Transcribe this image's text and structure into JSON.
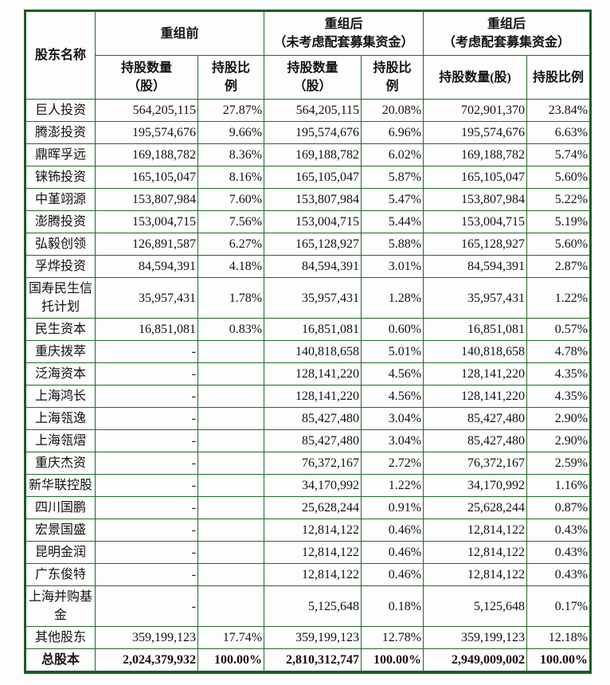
{
  "table": {
    "border_color": "#236b28",
    "header": {
      "shareholder": "股东名称",
      "group_pre_title": "重组前",
      "group_post1_title_line1": "重组后",
      "group_post1_title_line2": "（未考虑配套募集资金）",
      "group_post2_title_line1": "重组后",
      "group_post2_title_line2": "（考虑配套募集资金）",
      "qty_label_line1": "持股数量",
      "qty_label_line2": "（股）",
      "pct_label_line1": "持股比",
      "pct_label_line2": "例",
      "qty_label_inline": "持股数量(股)",
      "pct_label_inline": "持股比例"
    },
    "rows": [
      {
        "name": "巨人投资",
        "pre_qty": "564,205,115",
        "pre_pct": "27.87%",
        "post1_qty": "564,205,115",
        "post1_pct": "20.08%",
        "post2_qty": "702,901,370",
        "post2_pct": "23.84%"
      },
      {
        "name": "腾澎投资",
        "pre_qty": "195,574,676",
        "pre_pct": "9.66%",
        "post1_qty": "195,574,676",
        "post1_pct": "6.96%",
        "post2_qty": "195,574,676",
        "post2_pct": "6.63%"
      },
      {
        "name": "鼎晖孚远",
        "pre_qty": "169,188,782",
        "pre_pct": "8.36%",
        "post1_qty": "169,188,782",
        "post1_pct": "6.02%",
        "post2_qty": "169,188,782",
        "post2_pct": "5.74%"
      },
      {
        "name": "铼钸投资",
        "pre_qty": "165,105,047",
        "pre_pct": "8.16%",
        "post1_qty": "165,105,047",
        "post1_pct": "5.87%",
        "post2_qty": "165,105,047",
        "post2_pct": "5.60%"
      },
      {
        "name": "中堇翊源",
        "pre_qty": "153,807,984",
        "pre_pct": "7.60%",
        "post1_qty": "153,807,984",
        "post1_pct": "5.47%",
        "post2_qty": "153,807,984",
        "post2_pct": "5.22%"
      },
      {
        "name": "澎腾投资",
        "pre_qty": "153,004,715",
        "pre_pct": "7.56%",
        "post1_qty": "153,004,715",
        "post1_pct": "5.44%",
        "post2_qty": "153,004,715",
        "post2_pct": "5.19%"
      },
      {
        "name": "弘毅创领",
        "pre_qty": "126,891,587",
        "pre_pct": "6.27%",
        "post1_qty": "165,128,927",
        "post1_pct": "5.88%",
        "post2_qty": "165,128,927",
        "post2_pct": "5.60%"
      },
      {
        "name": "孚烨投资",
        "pre_qty": "84,594,391",
        "pre_pct": "4.18%",
        "post1_qty": "84,594,391",
        "post1_pct": "3.01%",
        "post2_qty": "84,594,391",
        "post2_pct": "2.87%"
      },
      {
        "name": "国寿民生信托计划",
        "pre_qty": "35,957,431",
        "pre_pct": "1.78%",
        "post1_qty": "35,957,431",
        "post1_pct": "1.28%",
        "post2_qty": "35,957,431",
        "post2_pct": "1.22%"
      },
      {
        "name": "民生资本",
        "pre_qty": "16,851,081",
        "pre_pct": "0.83%",
        "post1_qty": "16,851,081",
        "post1_pct": "0.60%",
        "post2_qty": "16,851,081",
        "post2_pct": "0.57%"
      },
      {
        "name": "重庆拨萃",
        "pre_qty": "-",
        "pre_pct": "",
        "post1_qty": "140,818,658",
        "post1_pct": "5.01%",
        "post2_qty": "140,818,658",
        "post2_pct": "4.78%"
      },
      {
        "name": "泛海资本",
        "pre_qty": "-",
        "pre_pct": "",
        "post1_qty": "128,141,220",
        "post1_pct": "4.56%",
        "post2_qty": "128,141,220",
        "post2_pct": "4.35%"
      },
      {
        "name": "上海鸿长",
        "pre_qty": "-",
        "pre_pct": "",
        "post1_qty": "128,141,220",
        "post1_pct": "4.56%",
        "post2_qty": "128,141,220",
        "post2_pct": "4.35%"
      },
      {
        "name": "上海瓴逸",
        "pre_qty": "-",
        "pre_pct": "",
        "post1_qty": "85,427,480",
        "post1_pct": "3.04%",
        "post2_qty": "85,427,480",
        "post2_pct": "2.90%"
      },
      {
        "name": "上海瓴熠",
        "pre_qty": "-",
        "pre_pct": "",
        "post1_qty": "85,427,480",
        "post1_pct": "3.04%",
        "post2_qty": "85,427,480",
        "post2_pct": "2.90%"
      },
      {
        "name": "重庆杰资",
        "pre_qty": "-",
        "pre_pct": "",
        "post1_qty": "76,372,167",
        "post1_pct": "2.72%",
        "post2_qty": "76,372,167",
        "post2_pct": "2.59%"
      },
      {
        "name": "新华联控股",
        "pre_qty": "-",
        "pre_pct": "",
        "post1_qty": "34,170,992",
        "post1_pct": "1.22%",
        "post2_qty": "34,170,992",
        "post2_pct": "1.16%"
      },
      {
        "name": "四川国鹏",
        "pre_qty": "-",
        "pre_pct": "",
        "post1_qty": "25,628,244",
        "post1_pct": "0.91%",
        "post2_qty": "25,628,244",
        "post2_pct": "0.87%"
      },
      {
        "name": "宏景国盛",
        "pre_qty": "-",
        "pre_pct": "",
        "post1_qty": "12,814,122",
        "post1_pct": "0.46%",
        "post2_qty": "12,814,122",
        "post2_pct": "0.43%"
      },
      {
        "name": "昆明金润",
        "pre_qty": "-",
        "pre_pct": "",
        "post1_qty": "12,814,122",
        "post1_pct": "0.46%",
        "post2_qty": "12,814,122",
        "post2_pct": "0.43%"
      },
      {
        "name": "广东俊特",
        "pre_qty": "-",
        "pre_pct": "",
        "post1_qty": "12,814,122",
        "post1_pct": "0.46%",
        "post2_qty": "12,814,122",
        "post2_pct": "0.43%"
      },
      {
        "name": "上海并购基金",
        "pre_qty": "-",
        "pre_pct": "",
        "post1_qty": "5,125,648",
        "post1_pct": "0.18%",
        "post2_qty": "5,125,648",
        "post2_pct": "0.17%"
      },
      {
        "name": "其他股东",
        "pre_qty": "359,199,123",
        "pre_pct": "17.74%",
        "post1_qty": "359,199,123",
        "post1_pct": "12.78%",
        "post2_qty": "359,199,123",
        "post2_pct": "12.18%"
      },
      {
        "name": "总股本",
        "pre_qty": "2,024,379,932",
        "pre_pct": "100.00%",
        "post1_qty": "2,810,312,747",
        "post1_pct": "100.00%",
        "post2_qty": "2,949,009,002",
        "post2_pct": "100.00%",
        "is_total": true
      }
    ]
  }
}
